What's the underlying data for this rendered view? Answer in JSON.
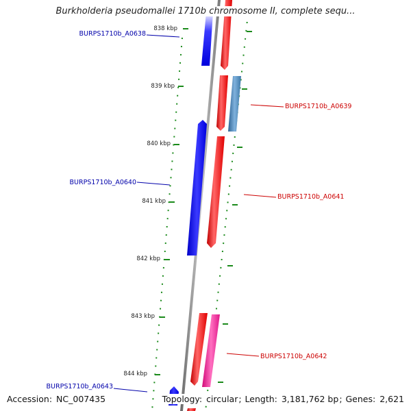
{
  "title": "Burkholderia pseudomallei 1710b chromosome II, complete sequ...",
  "scale_labels": [
    "838 kbp",
    "839 kbp",
    "840 kbp",
    "841 kbp",
    "842 kbp",
    "843 kbp",
    "844 kbp"
  ],
  "gene_labels": [
    "BURPS1710b_A0638",
    "BURPS1710b_A0639",
    "BURPS1710b_A0640",
    "BURPS1710b_A0641",
    "BURPS1710b_A0642",
    "BURPS1710b_A0643"
  ],
  "footer": {
    "accession_label": "Accession:",
    "accession": "NC_007435",
    "topology_label": "Topology:",
    "topology": "circular",
    "length_label": "Length:",
    "length": "3,181,762 bp",
    "genes_label": "Genes:",
    "genes": "2,621"
  },
  "colors": {
    "forward_gene": "#ff0000",
    "reverse_gene": "#0000ff",
    "steel_gene": "#4682b4",
    "pink_gene": "#ff1493",
    "backbone": "#808080",
    "tick": "#008000",
    "forward_label": "#cc0000",
    "reverse_label": "#0000aa"
  }
}
